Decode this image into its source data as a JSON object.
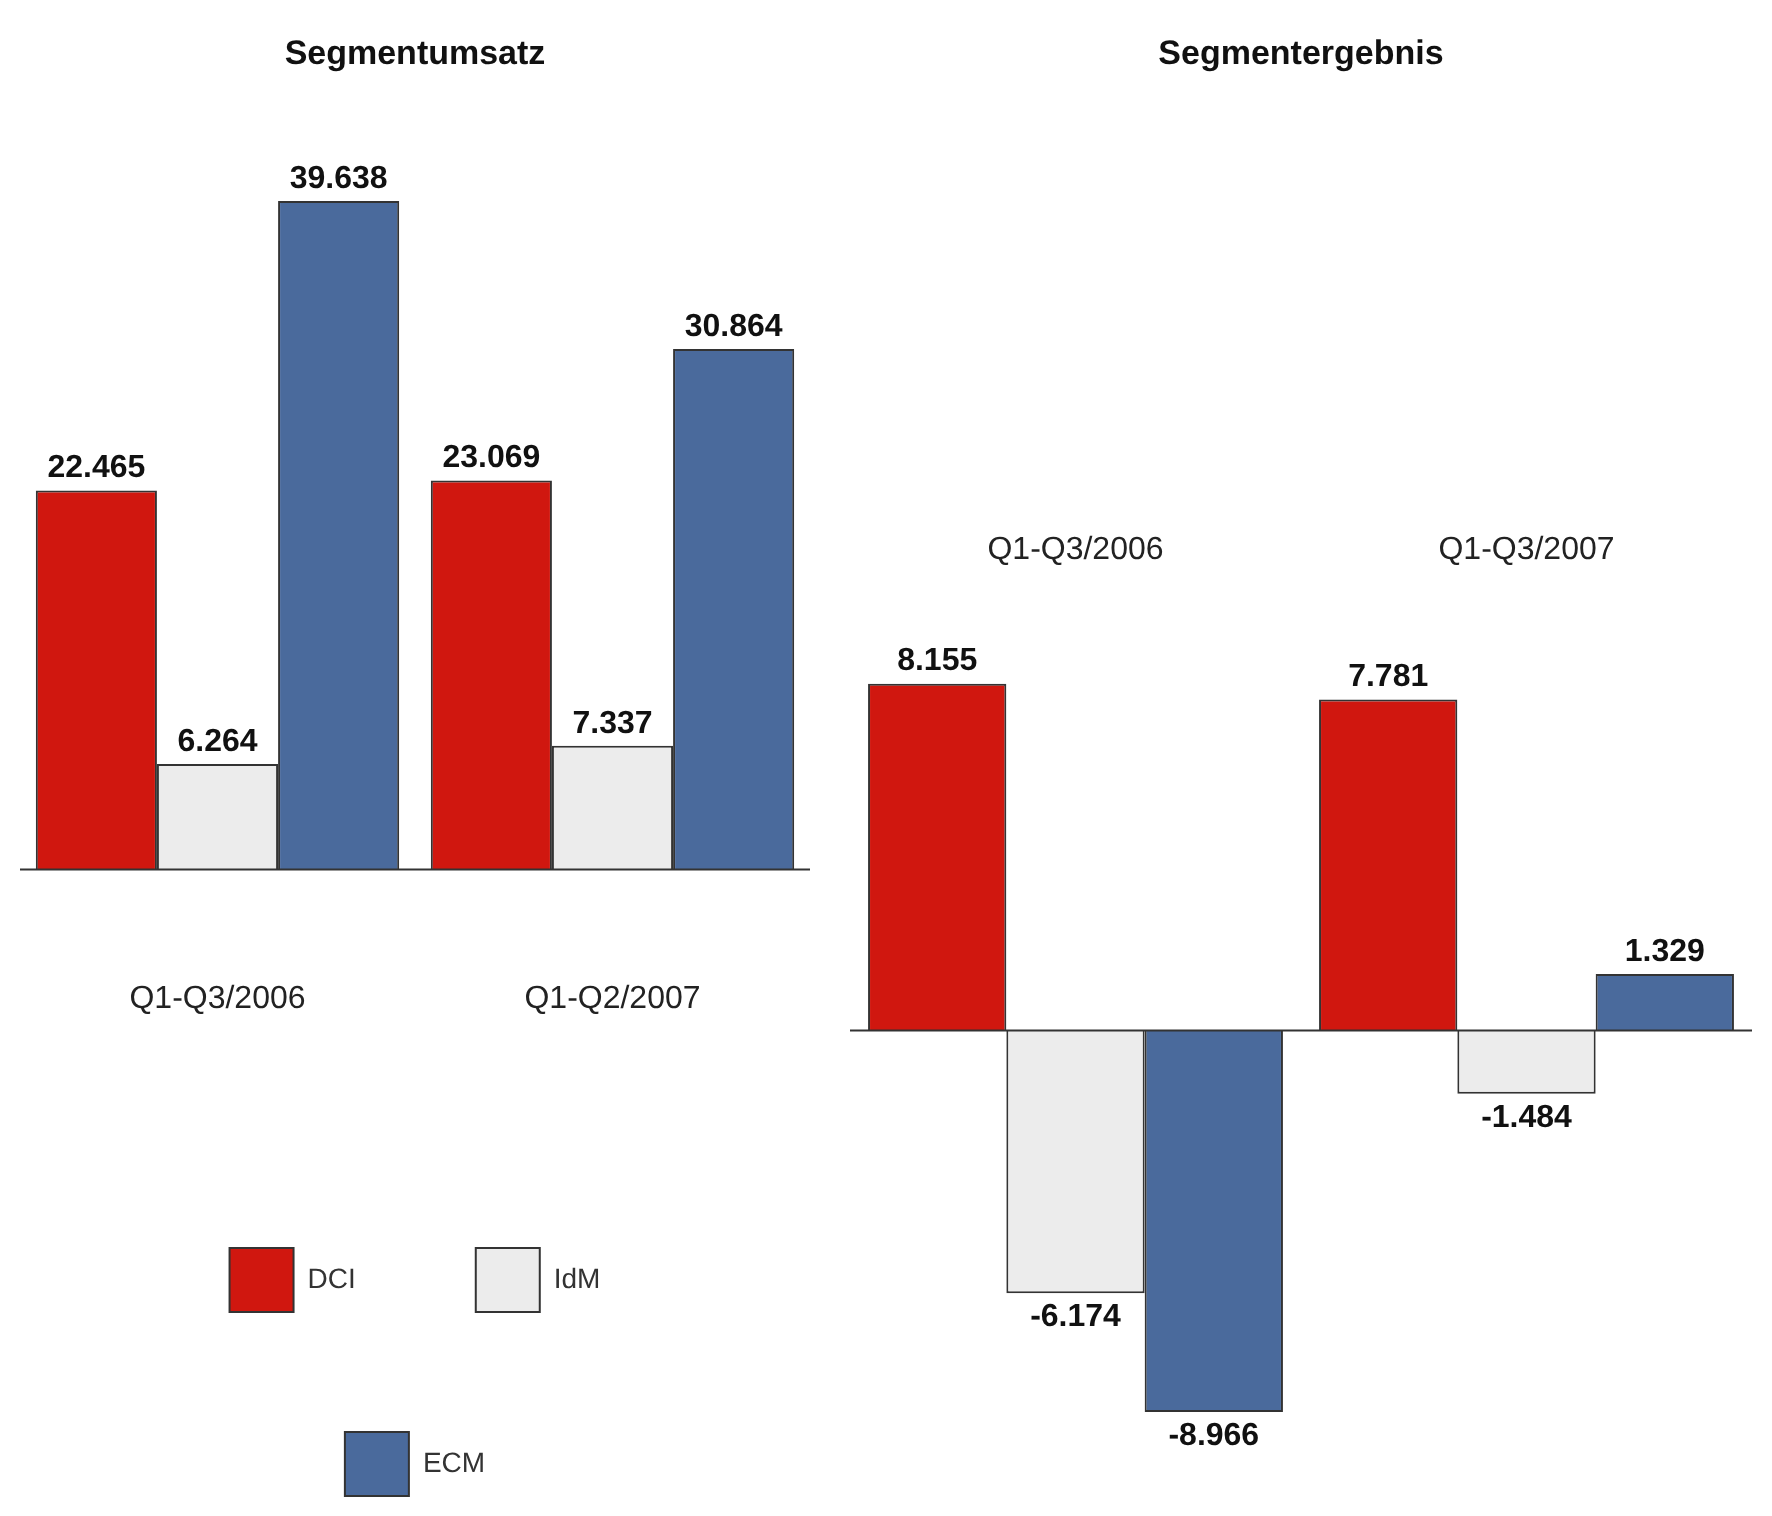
{
  "chart_data": [
    {
      "type": "bar",
      "title": "Segmentumsatz",
      "categories": [
        "Q1-Q3/2006",
        "Q1-Q2/2007"
      ],
      "series": [
        {
          "name": "DCI",
          "color": "#d0170f",
          "values": [
            22.465,
            23.069
          ]
        },
        {
          "name": "IdM",
          "color": "#ececec",
          "values": [
            6.264,
            7.337
          ]
        },
        {
          "name": "ECM",
          "color": "#4a6a9c",
          "values": [
            39.638,
            30.864
          ]
        }
      ],
      "data_labels": true,
      "legend": "bottom",
      "grid": false
    },
    {
      "type": "bar",
      "title": "Segmentergebnis",
      "categories": [
        "Q1-Q3/2006",
        "Q1-Q3/2007"
      ],
      "series": [
        {
          "color": "#d0170f",
          "values": [
            8.155,
            7.781
          ]
        },
        {
          "color": "#ececec",
          "values": [
            -6.174,
            -1.484
          ]
        },
        {
          "color": "#4a6a9c",
          "values": [
            -8.966,
            1.329
          ]
        }
      ],
      "data_labels": true,
      "grid": false
    }
  ]
}
